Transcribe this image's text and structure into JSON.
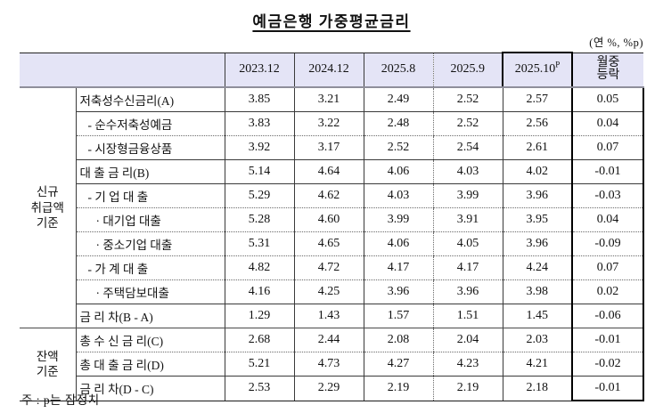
{
  "page": {
    "title": "예금은행 가중평균금리",
    "unit_note": "(연 %, %p)",
    "footnote": "주 : p는 잠정치"
  },
  "colors": {
    "header_bg": "#e4e4f6",
    "grid_line": "#3a3a3a",
    "header_rule": "#8e8e9a",
    "highlight_box": "#000000"
  },
  "chart_data": {
    "type": "table",
    "title": "예금은행 가중평균금리",
    "unit": "(연 %, %p)",
    "columns": [
      {
        "label": "2023.12",
        "sup": ""
      },
      {
        "label": "2024.12",
        "sup": ""
      },
      {
        "label": "2025.8",
        "sup": ""
      },
      {
        "label": "2025.9",
        "sup": ""
      },
      {
        "label": "2025.10",
        "sup": "P",
        "highlight": true
      },
      {
        "label": "월중\n등락",
        "sup": ""
      }
    ],
    "groups": [
      {
        "label": "신규\n취급액\n기준",
        "rows": [
          {
            "label": "저축성수신금리(A)",
            "indent": 0,
            "values": [
              "3.85",
              "3.21",
              "2.49",
              "2.52",
              "2.57",
              "0.05"
            ],
            "divider": "solid"
          },
          {
            "label": "- 순수저축성예금",
            "indent": 1,
            "values": [
              "3.83",
              "3.22",
              "2.48",
              "2.52",
              "2.56",
              "0.04"
            ],
            "divider": "dotted"
          },
          {
            "label": "- 시장형금융상품",
            "indent": 1,
            "values": [
              "3.92",
              "3.17",
              "2.52",
              "2.54",
              "2.61",
              "0.07"
            ],
            "divider": "solid"
          },
          {
            "label": "대 출 금 리(B)",
            "indent": 0,
            "values": [
              "5.14",
              "4.64",
              "4.06",
              "4.03",
              "4.02",
              "-0.01"
            ],
            "divider": "solid"
          },
          {
            "label": "- 기 업 대 출",
            "indent": 1,
            "values": [
              "5.29",
              "4.62",
              "4.03",
              "3.99",
              "3.96",
              "-0.03"
            ],
            "divider": "dotted"
          },
          {
            "label": "· 대기업 대출",
            "indent": 2,
            "values": [
              "5.28",
              "4.60",
              "3.99",
              "3.91",
              "3.95",
              "0.04"
            ],
            "divider": "dotted"
          },
          {
            "label": "· 중소기업 대출",
            "indent": 2,
            "values": [
              "5.31",
              "4.65",
              "4.06",
              "4.05",
              "3.96",
              "-0.09"
            ],
            "divider": "dotted"
          },
          {
            "label": "- 가 계 대 출",
            "indent": 1,
            "values": [
              "4.82",
              "4.72",
              "4.17",
              "4.17",
              "4.24",
              "0.07"
            ],
            "divider": "dotted"
          },
          {
            "label": "· 주택담보대출",
            "indent": 2,
            "values": [
              "4.16",
              "4.25",
              "3.96",
              "3.96",
              "3.98",
              "0.02"
            ],
            "divider": "solid"
          },
          {
            "label": "금 리 차(B - A)",
            "indent": 0,
            "values": [
              "1.29",
              "1.43",
              "1.57",
              "1.51",
              "1.45",
              "-0.06"
            ],
            "divider": "group"
          }
        ]
      },
      {
        "label": "잔액\n기준",
        "rows": [
          {
            "label": "총 수 신 금 리(C)",
            "indent": 0,
            "values": [
              "2.68",
              "2.44",
              "2.08",
              "2.04",
              "2.03",
              "-0.01"
            ],
            "divider": "dotted"
          },
          {
            "label": "총 대 출 금 리(D)",
            "indent": 0,
            "values": [
              "5.21",
              "4.73",
              "4.27",
              "4.23",
              "4.21",
              "-0.02"
            ],
            "divider": "solid"
          },
          {
            "label": "금 리 차(D - C)",
            "indent": 0,
            "values": [
              "2.53",
              "2.29",
              "2.19",
              "2.19",
              "2.18",
              "-0.01"
            ],
            "divider": "end"
          }
        ]
      }
    ]
  }
}
